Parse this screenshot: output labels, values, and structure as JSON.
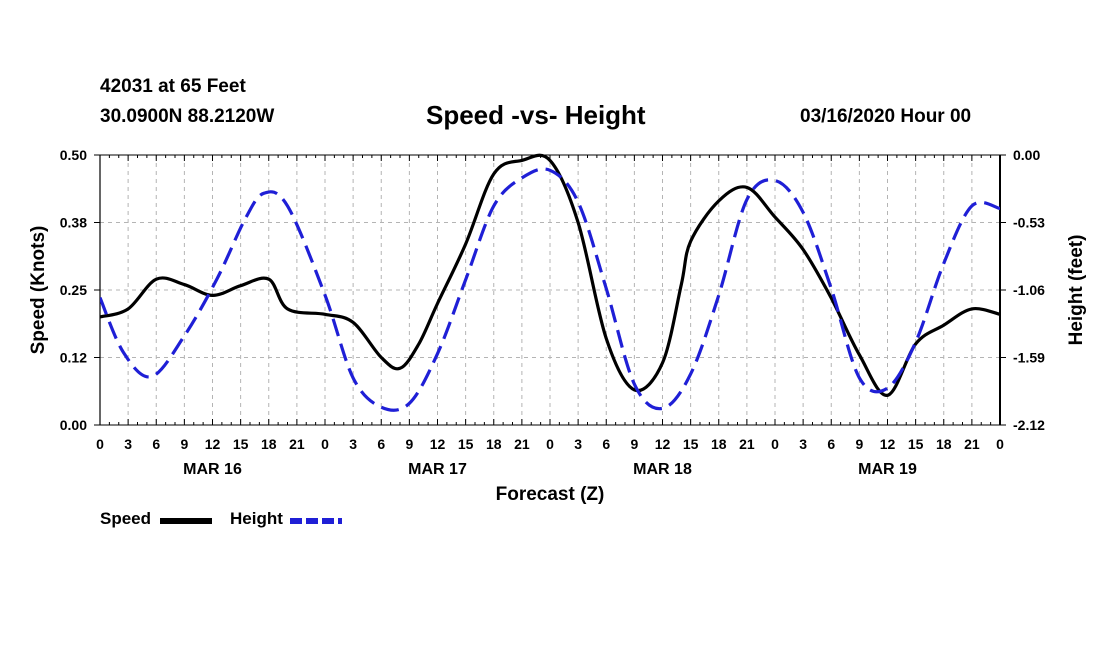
{
  "header": {
    "station": "42031 at 65 Feet",
    "coords": "30.0900N 88.2120W",
    "title": "Speed -vs- Height",
    "datetime": "03/16/2020 Hour 00"
  },
  "legend": {
    "speed": "Speed",
    "height": "Height"
  },
  "colors": {
    "speed": "#000000",
    "height": "#1f1fd6",
    "grid": "#b4b4b4"
  },
  "chart_data": {
    "type": "line",
    "xlabel": "Forecast (Z)",
    "ylabel_left": "Speed (Knots)",
    "ylabel_right": "Height (feet)",
    "xlim": [
      0,
      96
    ],
    "ylim_left": [
      0,
      0.5
    ],
    "ylim_right": [
      -2.12,
      0.0
    ],
    "x_ticks": [
      0,
      3,
      6,
      9,
      12,
      15,
      18,
      21,
      24,
      27,
      30,
      33,
      36,
      39,
      42,
      45,
      48,
      51,
      54,
      57,
      60,
      63,
      66,
      69,
      72,
      75,
      78,
      81,
      84,
      87,
      90,
      93,
      96
    ],
    "x_tick_labels": [
      "0",
      "3",
      "6",
      "9",
      "12",
      "15",
      "18",
      "21",
      "0",
      "3",
      "6",
      "9",
      "12",
      "15",
      "18",
      "21",
      "0",
      "3",
      "6",
      "9",
      "12",
      "15",
      "18",
      "21",
      "0",
      "3",
      "6",
      "9",
      "12",
      "15",
      "18",
      "21",
      "0"
    ],
    "left_ticks": [
      0.0,
      0.125,
      0.25,
      0.375,
      0.5
    ],
    "left_tick_labels": [
      "0.00",
      "0.12",
      "0.25",
      "0.38",
      "0.50"
    ],
    "right_ticks": [
      0.0,
      -0.53,
      -1.06,
      -1.59,
      -2.12
    ],
    "right_tick_labels": [
      "0.00",
      "-0.53",
      "-1.06",
      "-1.59",
      "-2.12"
    ],
    "day_labels": [
      {
        "x": 12,
        "label": "MAR 16"
      },
      {
        "x": 36,
        "label": "MAR 17"
      },
      {
        "x": 60,
        "label": "MAR 18"
      },
      {
        "x": 84,
        "label": "MAR 19"
      }
    ],
    "grid": true,
    "series": [
      {
        "name": "Speed",
        "axis": "left",
        "x": [
          0,
          3,
          6,
          9,
          12,
          15,
          18,
          20,
          24,
          27,
          30,
          32,
          34,
          36,
          39,
          42,
          45,
          48,
          51,
          54,
          57,
          60,
          62,
          63,
          66,
          69,
          72,
          75,
          78,
          81,
          84,
          87,
          90,
          93,
          96
        ],
        "y": [
          0.2,
          0.215,
          0.27,
          0.26,
          0.24,
          0.258,
          0.27,
          0.215,
          0.205,
          0.19,
          0.125,
          0.105,
          0.15,
          0.225,
          0.335,
          0.465,
          0.49,
          0.49,
          0.375,
          0.16,
          0.065,
          0.115,
          0.26,
          0.34,
          0.415,
          0.44,
          0.385,
          0.325,
          0.235,
          0.13,
          0.055,
          0.15,
          0.185,
          0.215,
          0.205
        ]
      },
      {
        "name": "Height",
        "axis": "right",
        "x": [
          0,
          2.5,
          5.5,
          9,
          12.5,
          15.5,
          17.5,
          20,
          24,
          27,
          30,
          33,
          36,
          39,
          42,
          45,
          48,
          51,
          54,
          57,
          60,
          63,
          66,
          69,
          72,
          75,
          78,
          81,
          84,
          87,
          90,
          93,
          96
        ],
        "y": [
          -1.12,
          -1.55,
          -1.74,
          -1.42,
          -0.97,
          -0.5,
          -0.3,
          -0.4,
          -1.1,
          -1.75,
          -1.98,
          -1.95,
          -1.56,
          -0.98,
          -0.4,
          -0.18,
          -0.12,
          -0.37,
          -1.05,
          -1.8,
          -1.99,
          -1.72,
          -1.1,
          -0.35,
          -0.2,
          -0.45,
          -1.05,
          -1.75,
          -1.83,
          -1.47,
          -0.85,
          -0.4,
          -0.42
        ]
      }
    ]
  }
}
